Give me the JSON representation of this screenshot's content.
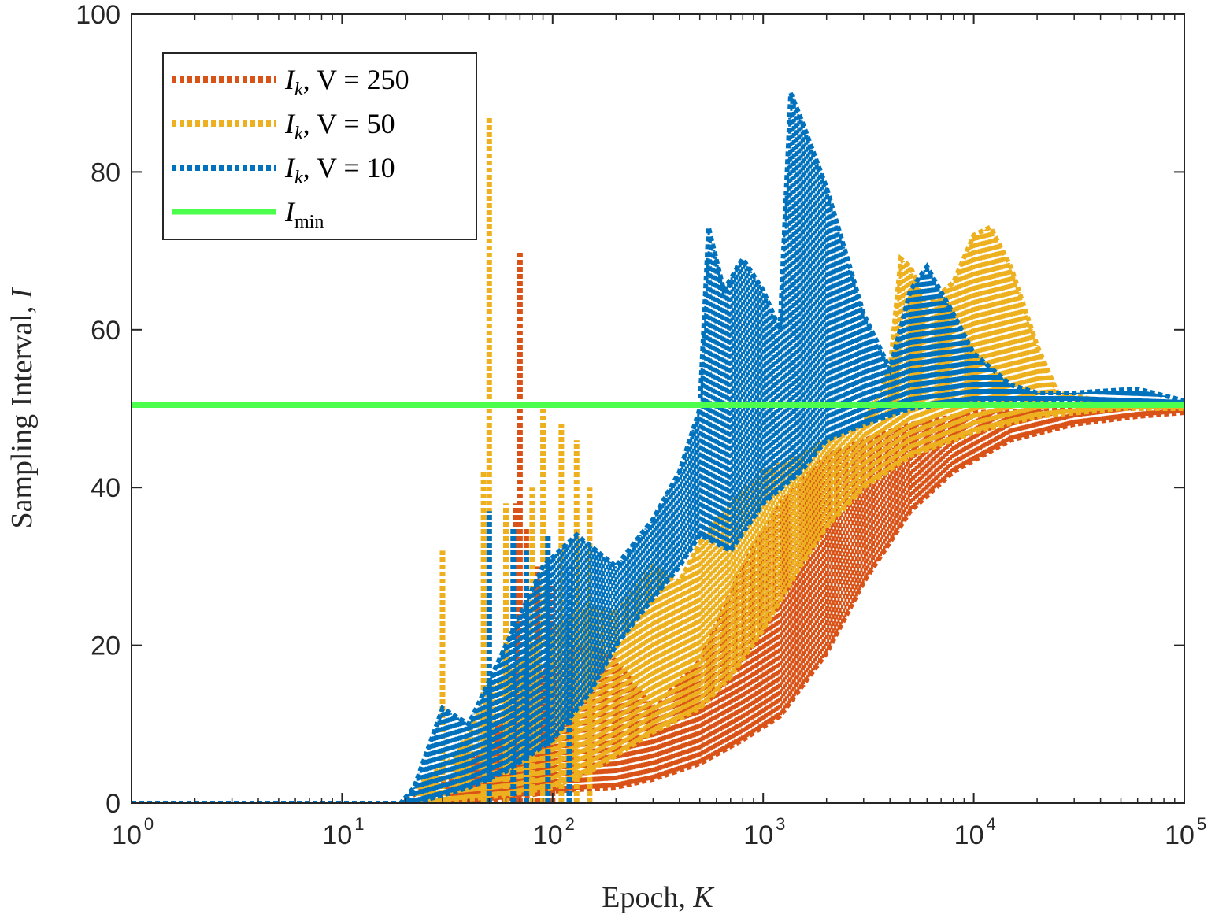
{
  "chart_data": {
    "type": "line",
    "title": "",
    "xlabel_text": "Epoch, ",
    "xlabel_var": "K",
    "ylabel_text": "Sampling Interval, ",
    "ylabel_var": "I",
    "xscale": "log",
    "xlim": [
      1,
      100000
    ],
    "ylim": [
      0,
      100
    ],
    "xticks": [
      {
        "base": "10",
        "exp": "0",
        "value": 1
      },
      {
        "base": "10",
        "exp": "1",
        "value": 10
      },
      {
        "base": "10",
        "exp": "2",
        "value": 100
      },
      {
        "base": "10",
        "exp": "3",
        "value": 1000
      },
      {
        "base": "10",
        "exp": "4",
        "value": 10000
      },
      {
        "base": "10",
        "exp": "5",
        "value": 100000
      }
    ],
    "yticks": [
      {
        "label": "0",
        "value": 0
      },
      {
        "label": "20",
        "value": 20
      },
      {
        "label": "40",
        "value": 40
      },
      {
        "label": "60",
        "value": 60
      },
      {
        "label": "80",
        "value": 80
      },
      {
        "label": "100",
        "value": 100
      }
    ],
    "legend_position": "top-left",
    "series": [
      {
        "name": "I_k, V = 250",
        "label_main": "I",
        "label_sub": "k",
        "label_rest": ", V = 250",
        "color": "#D95319",
        "style": "dotted",
        "upper": [
          [
            1,
            0
          ],
          [
            19,
            0
          ],
          [
            25,
            2
          ],
          [
            35,
            3
          ],
          [
            50,
            8
          ],
          [
            70,
            14
          ],
          [
            100,
            18
          ],
          [
            150,
            20
          ],
          [
            200,
            18
          ],
          [
            300,
            12
          ],
          [
            500,
            18
          ],
          [
            800,
            30
          ],
          [
            1200,
            38
          ],
          [
            2000,
            44
          ],
          [
            3000,
            46
          ],
          [
            5000,
            48
          ],
          [
            10000,
            49.5
          ],
          [
            30000,
            50
          ],
          [
            100000,
            50
          ]
        ],
        "lower": [
          [
            1,
            0
          ],
          [
            19,
            0
          ],
          [
            25,
            0
          ],
          [
            40,
            0
          ],
          [
            60,
            0.5
          ],
          [
            100,
            1.5
          ],
          [
            200,
            2
          ],
          [
            300,
            3
          ],
          [
            500,
            5
          ],
          [
            800,
            8
          ],
          [
            1200,
            11
          ],
          [
            2000,
            19
          ],
          [
            3000,
            28
          ],
          [
            5000,
            37
          ],
          [
            8000,
            42
          ],
          [
            15000,
            46
          ],
          [
            30000,
            48
          ],
          [
            60000,
            49
          ],
          [
            100000,
            49.5
          ]
        ],
        "spikes": [
          [
            70,
            70
          ],
          [
            67,
            38
          ],
          [
            75,
            35
          ],
          [
            85,
            30
          ],
          [
            100,
            28
          ]
        ]
      },
      {
        "name": "I_k, V = 50",
        "label_main": "I",
        "label_sub": "k",
        "label_rest": ", V = 50",
        "color": "#EDB120",
        "style": "dotted",
        "upper": [
          [
            1,
            0
          ],
          [
            19,
            0
          ],
          [
            25,
            3
          ],
          [
            35,
            6
          ],
          [
            50,
            14
          ],
          [
            70,
            18
          ],
          [
            100,
            22
          ],
          [
            150,
            25
          ],
          [
            200,
            24
          ],
          [
            300,
            30
          ],
          [
            400,
            28
          ],
          [
            500,
            33
          ],
          [
            700,
            38
          ],
          [
            1000,
            42
          ],
          [
            1500,
            44
          ],
          [
            2000,
            46
          ],
          [
            3000,
            48
          ],
          [
            4000,
            55
          ],
          [
            4500,
            69
          ],
          [
            5000,
            68
          ],
          [
            6000,
            63
          ],
          [
            8000,
            66
          ],
          [
            10000,
            72
          ],
          [
            12000,
            73
          ],
          [
            15000,
            68
          ],
          [
            20000,
            58
          ],
          [
            25000,
            52
          ],
          [
            40000,
            51
          ],
          [
            100000,
            50.5
          ]
        ],
        "lower": [
          [
            1,
            0
          ],
          [
            19,
            0
          ],
          [
            25,
            0
          ],
          [
            40,
            0.5
          ],
          [
            60,
            1
          ],
          [
            100,
            2
          ],
          [
            150,
            4
          ],
          [
            200,
            6
          ],
          [
            300,
            9
          ],
          [
            500,
            12
          ],
          [
            700,
            16
          ],
          [
            1000,
            22
          ],
          [
            1500,
            30
          ],
          [
            2000,
            35
          ],
          [
            3000,
            40
          ],
          [
            5000,
            44
          ],
          [
            10000,
            47
          ],
          [
            20000,
            49
          ],
          [
            50000,
            50
          ],
          [
            100000,
            50
          ]
        ],
        "spikes": [
          [
            30,
            32
          ],
          [
            50,
            87
          ],
          [
            47,
            42
          ],
          [
            60,
            38
          ],
          [
            90,
            51
          ],
          [
            80,
            40
          ],
          [
            110,
            48
          ],
          [
            130,
            46
          ],
          [
            150,
            40
          ]
        ]
      },
      {
        "name": "I_k, V = 10",
        "label_main": "I",
        "label_sub": "k",
        "label_rest": ", V = 10",
        "color": "#0072BD",
        "style": "dotted",
        "upper": [
          [
            1,
            0
          ],
          [
            19,
            0
          ],
          [
            22,
            2
          ],
          [
            30,
            12
          ],
          [
            40,
            10
          ],
          [
            60,
            20
          ],
          [
            90,
            30
          ],
          [
            130,
            34
          ],
          [
            200,
            30
          ],
          [
            300,
            36
          ],
          [
            400,
            42
          ],
          [
            500,
            50
          ],
          [
            550,
            73
          ],
          [
            650,
            65
          ],
          [
            800,
            69
          ],
          [
            1000,
            65
          ],
          [
            1200,
            60
          ],
          [
            1350,
            90
          ],
          [
            1500,
            87
          ],
          [
            2000,
            78
          ],
          [
            3000,
            62
          ],
          [
            4000,
            55
          ],
          [
            5000,
            65
          ],
          [
            6000,
            68
          ],
          [
            8000,
            62
          ],
          [
            10000,
            57
          ],
          [
            15000,
            53
          ],
          [
            20000,
            52
          ],
          [
            30000,
            52
          ],
          [
            60000,
            52.5
          ],
          [
            100000,
            51
          ]
        ],
        "lower": [
          [
            1,
            0
          ],
          [
            19,
            0
          ],
          [
            22,
            0
          ],
          [
            30,
            1
          ],
          [
            40,
            2
          ],
          [
            60,
            4
          ],
          [
            100,
            8
          ],
          [
            150,
            14
          ],
          [
            200,
            20
          ],
          [
            300,
            26
          ],
          [
            400,
            30
          ],
          [
            500,
            34
          ],
          [
            700,
            32
          ],
          [
            1000,
            38
          ],
          [
            1500,
            42
          ],
          [
            2000,
            46
          ],
          [
            3000,
            48
          ],
          [
            5000,
            50
          ],
          [
            10000,
            51
          ],
          [
            30000,
            51
          ],
          [
            100000,
            50.5
          ]
        ],
        "spikes": [
          [
            50,
            37
          ],
          [
            65,
            35
          ],
          [
            75,
            32
          ],
          [
            95,
            34
          ],
          [
            120,
            30
          ]
        ]
      },
      {
        "name": "I_min",
        "label_main": "I",
        "label_sub": "min",
        "label_rest": "",
        "color": "#4DFF4D",
        "style": "solid",
        "y": 50.5
      }
    ]
  }
}
